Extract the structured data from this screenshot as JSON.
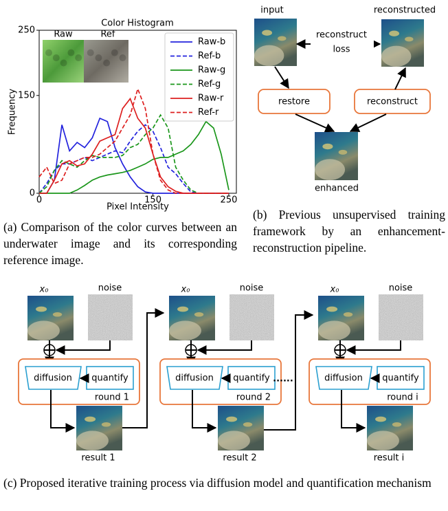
{
  "chart_data": {
    "type": "line",
    "title": "Color Histogram",
    "x_label": "Pixel Intensity",
    "y_label": "Frequency",
    "inset_labels": [
      "Raw",
      "Ref"
    ],
    "x": [
      0,
      10,
      20,
      30,
      40,
      50,
      60,
      70,
      80,
      90,
      100,
      110,
      120,
      130,
      140,
      150,
      160,
      170,
      180,
      190,
      200,
      210,
      220,
      230,
      240,
      250
    ],
    "series": [
      {
        "name": "Raw-b",
        "color": "#2222dd",
        "style": "solid",
        "values": [
          0,
          0,
          20,
          105,
          65,
          78,
          70,
          85,
          115,
          110,
          70,
          45,
          25,
          10,
          2,
          0,
          0,
          0,
          0,
          0,
          0,
          0,
          0,
          0,
          0,
          0
        ]
      },
      {
        "name": "Ref-b",
        "color": "#2222dd",
        "style": "dashed",
        "values": [
          0,
          15,
          35,
          45,
          45,
          50,
          55,
          50,
          55,
          60,
          65,
          62,
          80,
          95,
          105,
          95,
          70,
          40,
          30,
          15,
          2,
          0,
          0,
          0,
          0,
          0
        ]
      },
      {
        "name": "Raw-g",
        "color": "#1a961a",
        "style": "solid",
        "values": [
          0,
          0,
          0,
          0,
          0,
          5,
          12,
          20,
          25,
          28,
          30,
          32,
          35,
          40,
          45,
          52,
          55,
          55,
          60,
          65,
          75,
          90,
          110,
          100,
          60,
          5
        ]
      },
      {
        "name": "Ref-g",
        "color": "#1a961a",
        "style": "dashed",
        "values": [
          0,
          10,
          35,
          50,
          45,
          40,
          50,
          58,
          55,
          55,
          55,
          58,
          70,
          75,
          90,
          100,
          120,
          100,
          40,
          20,
          5,
          0,
          0,
          0,
          0,
          0
        ]
      },
      {
        "name": "Raw-r",
        "color": "#dd1f1f",
        "style": "solid",
        "values": [
          0,
          0,
          20,
          45,
          50,
          42,
          45,
          60,
          80,
          85,
          90,
          130,
          145,
          115,
          100,
          60,
          25,
          10,
          3,
          0,
          0,
          0,
          0,
          0,
          0,
          0
        ]
      },
      {
        "name": "Ref-r",
        "color": "#dd1f1f",
        "style": "dashed",
        "values": [
          25,
          40,
          15,
          20,
          45,
          50,
          55,
          55,
          60,
          70,
          80,
          100,
          120,
          160,
          130,
          60,
          20,
          5,
          0,
          0,
          0,
          0,
          0,
          0,
          0,
          0
        ]
      }
    ],
    "xlim": [
      0,
      260
    ],
    "ylim": [
      0,
      250
    ],
    "xticks": [
      0,
      150,
      250
    ],
    "yticks": [
      0,
      150,
      250
    ],
    "grid": false,
    "legend": "upper right"
  },
  "captions": {
    "a": "(a) Comparison of the color curves between an underwater image and its corresponding reference image.",
    "b": "(b) Previous unsupervised training framework by an enhancement-reconstruction pipeline.",
    "c": "(c) Proposed iterative training process via diffusion model and quantification mechanism"
  },
  "framework": {
    "input": "input",
    "reconstructed": "reconstructed",
    "loss": [
      "reconstruct",
      "loss"
    ],
    "restore": "restore",
    "reconstruct": "reconstruct",
    "enhanced": "enhanced"
  },
  "iterative": {
    "rounds": [
      {
        "x0": "x₀",
        "noise": "noise",
        "diffusion": "diffusion",
        "quantify": "quantify",
        "round": "round 1",
        "result": "result 1"
      },
      {
        "x0": "x₀",
        "noise": "noise",
        "diffusion": "diffusion",
        "quantify": "quantify",
        "round": "round 2",
        "result": "result 2"
      },
      {
        "x0": "x₀",
        "noise": "noise",
        "diffusion": "diffusion",
        "quantify": "quantify",
        "round": "round i",
        "result": "result i"
      }
    ],
    "ellipsis": "......"
  }
}
